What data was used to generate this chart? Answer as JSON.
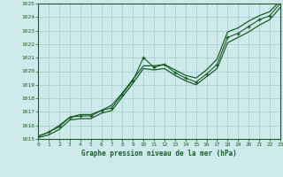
{
  "title": "Graphe pression niveau de la mer (hPa)",
  "bg_color": "#ceeaea",
  "grid_color": "#a8cccc",
  "line_color": "#1a5c28",
  "xlim": [
    0,
    23
  ],
  "ylim": [
    1015,
    1025
  ],
  "xticks": [
    0,
    1,
    2,
    3,
    4,
    5,
    6,
    7,
    8,
    9,
    10,
    11,
    12,
    13,
    14,
    15,
    16,
    17,
    18,
    19,
    20,
    21,
    22,
    23
  ],
  "yticks": [
    1015,
    1016,
    1017,
    1018,
    1019,
    1020,
    1021,
    1022,
    1023,
    1024,
    1025
  ],
  "x": [
    0,
    1,
    2,
    3,
    4,
    5,
    6,
    7,
    8,
    9,
    10,
    11,
    12,
    13,
    14,
    15,
    16,
    17,
    18,
    19,
    20,
    21,
    22,
    23
  ],
  "y_marker": [
    1015.2,
    1015.5,
    1015.9,
    1016.6,
    1016.7,
    1016.7,
    1017.1,
    1017.3,
    1018.3,
    1019.3,
    1021.0,
    1020.3,
    1020.5,
    1019.9,
    1019.5,
    1019.2,
    1019.8,
    1020.5,
    1022.5,
    1022.8,
    1023.3,
    1023.8,
    1024.1,
    1025.0
  ],
  "y_upper": [
    1015.2,
    1015.5,
    1016.0,
    1016.6,
    1016.8,
    1016.8,
    1017.1,
    1017.5,
    1018.4,
    1019.4,
    1020.4,
    1020.4,
    1020.5,
    1020.1,
    1019.7,
    1019.5,
    1020.1,
    1020.9,
    1022.9,
    1023.2,
    1023.7,
    1024.1,
    1024.4,
    1025.2
  ],
  "y_lower": [
    1015.1,
    1015.3,
    1015.7,
    1016.4,
    1016.5,
    1016.5,
    1016.9,
    1017.1,
    1018.1,
    1019.1,
    1020.2,
    1020.1,
    1020.2,
    1019.7,
    1019.3,
    1019.0,
    1019.6,
    1020.2,
    1022.1,
    1022.5,
    1022.9,
    1023.4,
    1023.8,
    1024.7
  ]
}
